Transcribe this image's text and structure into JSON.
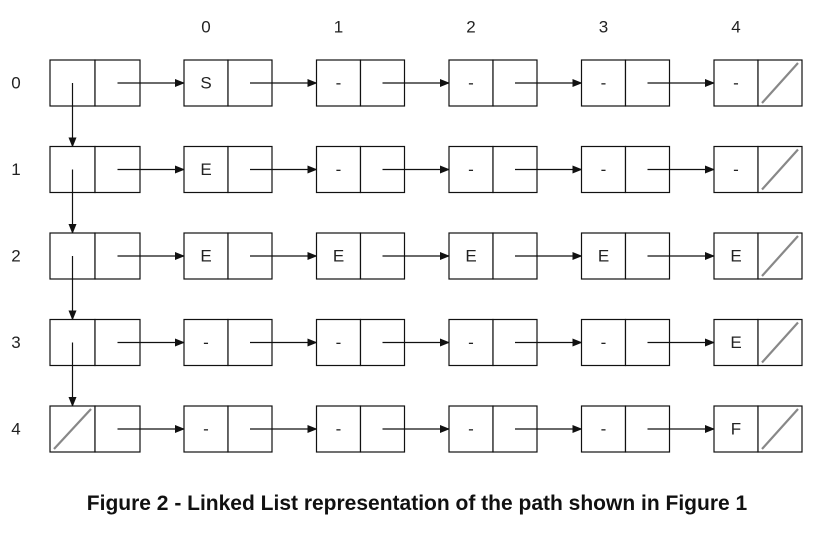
{
  "column_labels": [
    "0",
    "1",
    "2",
    "3",
    "4"
  ],
  "row_labels": [
    "0",
    "1",
    "2",
    "3",
    "4"
  ],
  "rows": [
    {
      "header_null": false,
      "cells": [
        "S",
        "-",
        "-",
        "-",
        "-"
      ]
    },
    {
      "header_null": false,
      "cells": [
        "E",
        "-",
        "-",
        "-",
        "-"
      ]
    },
    {
      "header_null": false,
      "cells": [
        "E",
        "E",
        "E",
        "E",
        "E"
      ]
    },
    {
      "header_null": false,
      "cells": [
        "-",
        "-",
        "-",
        "-",
        "E"
      ]
    },
    {
      "header_null": true,
      "cells": [
        "-",
        "-",
        "-",
        "-",
        "F"
      ]
    }
  ],
  "caption": "Figure 2 - Linked List representation of the path shown in Figure 1",
  "colors": {
    "stroke": "#111111",
    "null_slash": "#888888",
    "text": "#222222"
  }
}
